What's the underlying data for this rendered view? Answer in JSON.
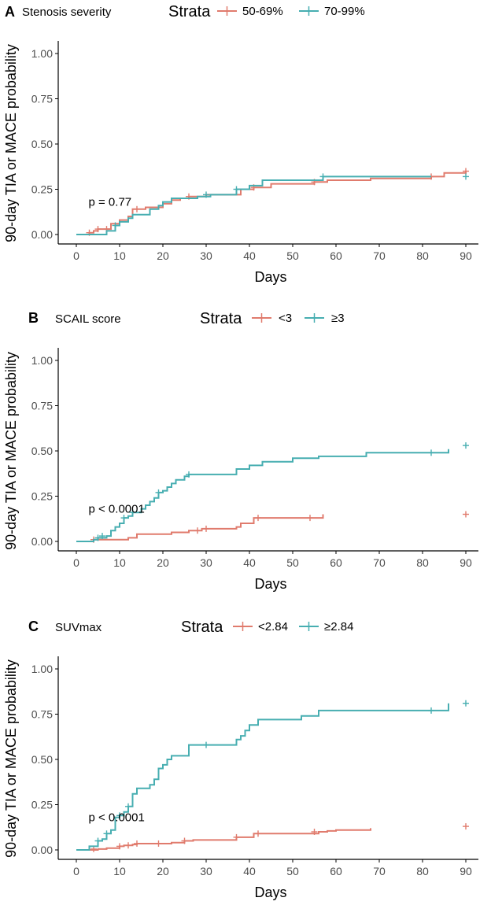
{
  "colors": {
    "series_a": "#e07b6d",
    "series_b": "#47aeb1",
    "axis": "#000000",
    "tick_text": "#4d4d4d"
  },
  "chart_data": [
    {
      "type": "line",
      "panel_letter": "A",
      "title": "Stenosis severity",
      "legend_title": "Strata",
      "xlabel": "Days",
      "ylabel": "90-day TIA or MACE probability",
      "xlim": [
        0,
        90
      ],
      "ylim": [
        0,
        1
      ],
      "xticks": [
        0,
        10,
        20,
        30,
        40,
        50,
        60,
        70,
        80,
        90
      ],
      "yticks": [
        0,
        0.25,
        0.5,
        0.75,
        1
      ],
      "ytick_labels": [
        "0.00",
        "0.25",
        "0.50",
        "0.75",
        "1.00"
      ],
      "annotation": "p = 0.77",
      "annotation_at": [
        1,
        0.18
      ],
      "series": [
        {
          "name": "50-69%",
          "color_key": "series_a",
          "x": [
            0,
            3,
            4,
            5,
            8,
            10,
            12,
            13,
            16,
            20,
            22,
            24,
            26,
            30,
            38,
            41,
            45,
            55,
            58,
            68,
            82,
            85,
            90
          ],
          "y": [
            0,
            0.01,
            0.02,
            0.03,
            0.06,
            0.08,
            0.1,
            0.14,
            0.15,
            0.17,
            0.19,
            0.2,
            0.21,
            0.22,
            0.25,
            0.26,
            0.28,
            0.29,
            0.3,
            0.31,
            0.32,
            0.34,
            0.35
          ],
          "censor_x": [
            3,
            5,
            7,
            14,
            26,
            41,
            55,
            82,
            90
          ],
          "censor_y": [
            0.01,
            0.03,
            0.03,
            0.14,
            0.21,
            0.26,
            0.29,
            0.32,
            0.35
          ]
        },
        {
          "name": "70-99%",
          "color_key": "series_b",
          "x": [
            0,
            7,
            9,
            10,
            12,
            13,
            17,
            19,
            20,
            22,
            28,
            31,
            37,
            40,
            43,
            57,
            82
          ],
          "y": [
            0,
            0.02,
            0.05,
            0.07,
            0.09,
            0.11,
            0.14,
            0.16,
            0.18,
            0.2,
            0.21,
            0.22,
            0.25,
            0.27,
            0.3,
            0.32,
            0.32
          ],
          "censor_x": [
            9,
            30,
            37,
            57,
            90
          ],
          "censor_y": [
            0.05,
            0.22,
            0.25,
            0.32,
            0.32
          ]
        }
      ]
    },
    {
      "type": "line",
      "panel_letter": "B",
      "title": "SCAIL score",
      "legend_title": "Strata",
      "xlabel": "Days",
      "ylabel": "90-day TIA or MACE probability",
      "xlim": [
        0,
        90
      ],
      "ylim": [
        0,
        1
      ],
      "xticks": [
        0,
        10,
        20,
        30,
        40,
        50,
        60,
        70,
        80,
        90
      ],
      "yticks": [
        0,
        0.25,
        0.5,
        0.75,
        1
      ],
      "ytick_labels": [
        "0.00",
        "0.25",
        "0.50",
        "0.75",
        "1.00"
      ],
      "annotation": "p < 0.0001",
      "annotation_at": [
        1,
        0.18
      ],
      "series": [
        {
          "name": "<3",
          "color_key": "series_a",
          "x": [
            0,
            4,
            12,
            14,
            22,
            26,
            29,
            37,
            38,
            41,
            57
          ],
          "y": [
            0,
            0.01,
            0.02,
            0.04,
            0.05,
            0.06,
            0.07,
            0.08,
            0.1,
            0.13,
            0.15
          ],
          "censor_x": [
            4,
            28,
            30,
            42,
            54,
            90
          ],
          "censor_y": [
            0.01,
            0.06,
            0.07,
            0.13,
            0.13,
            0.15
          ]
        },
        {
          "name": "≥3",
          "color_key": "series_b",
          "x": [
            0,
            4,
            5,
            7,
            8,
            9,
            10,
            11,
            12,
            13,
            15,
            16,
            17,
            18,
            19,
            20,
            21,
            22,
            23,
            25,
            26,
            37,
            40,
            43,
            50,
            56,
            67,
            86
          ],
          "y": [
            0,
            0.01,
            0.02,
            0.03,
            0.06,
            0.08,
            0.1,
            0.13,
            0.14,
            0.16,
            0.18,
            0.2,
            0.22,
            0.24,
            0.27,
            0.28,
            0.3,
            0.32,
            0.34,
            0.36,
            0.37,
            0.4,
            0.42,
            0.44,
            0.46,
            0.47,
            0.49,
            0.51
          ],
          "censor_x": [
            5,
            6,
            11,
            13,
            19,
            26,
            82,
            90
          ],
          "censor_y": [
            0.02,
            0.03,
            0.13,
            0.16,
            0.27,
            0.37,
            0.49,
            0.53
          ]
        }
      ]
    },
    {
      "type": "line",
      "panel_letter": "C",
      "title": "SUVmax",
      "legend_title": "Strata",
      "xlabel": "Days",
      "ylabel": "90-day TIA or MACE probability",
      "xlim": [
        0,
        90
      ],
      "ylim": [
        0,
        1
      ],
      "xticks": [
        0,
        10,
        20,
        30,
        40,
        50,
        60,
        70,
        80,
        90
      ],
      "yticks": [
        0,
        0.25,
        0.5,
        0.75,
        1
      ],
      "ytick_labels": [
        "0.00",
        "0.25",
        "0.50",
        "0.75",
        "1.00"
      ],
      "annotation": "p < 0.0001",
      "annotation_at": [
        1,
        0.18
      ],
      "series": [
        {
          "name": "<2.84",
          "color_key": "series_a",
          "x": [
            0,
            5,
            7,
            10,
            11,
            13,
            14,
            22,
            25,
            27,
            37,
            41,
            56,
            58,
            60,
            68
          ],
          "y": [
            0,
            0.005,
            0.01,
            0.02,
            0.025,
            0.03,
            0.035,
            0.04,
            0.05,
            0.055,
            0.07,
            0.09,
            0.1,
            0.105,
            0.11,
            0.12
          ],
          "censor_x": [
            4,
            10,
            12,
            14,
            19,
            25,
            37,
            42,
            55,
            90
          ],
          "censor_y": [
            0.005,
            0.02,
            0.025,
            0.035,
            0.035,
            0.05,
            0.07,
            0.09,
            0.1,
            0.13
          ]
        },
        {
          "name": "≥2.84",
          "color_key": "series_b",
          "x": [
            0,
            3,
            5,
            6,
            7,
            8,
            9,
            10,
            11,
            12,
            13,
            14,
            17,
            18,
            19,
            20,
            21,
            22,
            26,
            37,
            38,
            39,
            40,
            42,
            52,
            56,
            86
          ],
          "y": [
            0,
            0.02,
            0.05,
            0.06,
            0.09,
            0.11,
            0.18,
            0.19,
            0.21,
            0.24,
            0.31,
            0.34,
            0.36,
            0.39,
            0.45,
            0.47,
            0.5,
            0.52,
            0.58,
            0.61,
            0.63,
            0.66,
            0.69,
            0.72,
            0.74,
            0.77,
            0.81
          ],
          "censor_x": [
            5,
            7,
            10,
            12,
            30,
            82,
            90
          ],
          "censor_y": [
            0.05,
            0.09,
            0.19,
            0.24,
            0.58,
            0.77,
            0.81
          ]
        }
      ]
    }
  ]
}
